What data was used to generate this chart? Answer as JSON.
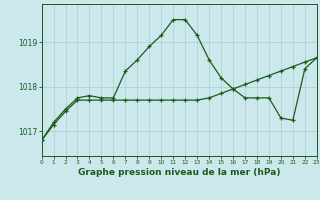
{
  "title": "Graphe pression niveau de la mer (hPa)",
  "hours": [
    0,
    1,
    2,
    3,
    4,
    5,
    6,
    7,
    8,
    9,
    10,
    11,
    12,
    13,
    14,
    15,
    16,
    17,
    18,
    19,
    20,
    21,
    22,
    23
  ],
  "line1": [
    1016.8,
    1017.2,
    1017.5,
    1017.75,
    1017.8,
    1017.75,
    1017.75,
    1018.35,
    1018.6,
    1018.9,
    1019.15,
    1019.5,
    1019.5,
    1019.15,
    1018.6,
    1018.2,
    1017.95,
    1017.75,
    1017.75,
    1017.75,
    1017.3,
    1017.25,
    1018.4,
    1018.65
  ],
  "line2": [
    1016.8,
    1017.15,
    1017.45,
    1017.7,
    1017.7,
    1017.7,
    1017.7,
    1017.7,
    1017.7,
    1017.7,
    1017.7,
    1017.7,
    1017.7,
    1017.7,
    1017.75,
    1017.85,
    1017.95,
    1018.05,
    1018.15,
    1018.25,
    1018.35,
    1018.45,
    1018.55,
    1018.65
  ],
  "ylim": [
    1016.45,
    1019.85
  ],
  "yticks": [
    1017,
    1018,
    1019
  ],
  "line_color": "#1a5c1a",
  "bg_color": "#cce8ec",
  "grid_color": "#aacccc",
  "title_color": "#1a5c1a",
  "title_fontsize": 6.5,
  "marker_size": 3.5
}
